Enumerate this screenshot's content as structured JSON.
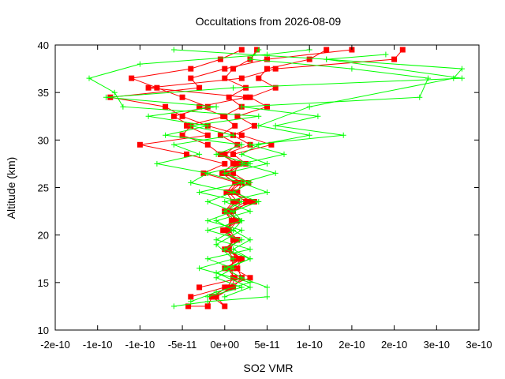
{
  "chart_data": {
    "type": "line",
    "title": "Occultations from 2026-08-09",
    "xlabel": "SO2 VMR",
    "ylabel": "Altitude (km)",
    "xlim": [
      -2e-10,
      3e-10
    ],
    "ylim": [
      10,
      40
    ],
    "xticks": [
      "-2e-10",
      "-1e-10",
      "-1e-10",
      "-5e-11",
      "0e+00",
      "5e-11",
      "1e-10",
      "2e-10",
      "2e-10",
      "3e-10",
      "3e-10"
    ],
    "yticks": [
      "10",
      "15",
      "20",
      "25",
      "30",
      "35",
      "40"
    ],
    "grid": false,
    "legend": "none",
    "series": [
      {
        "color": "#ff0000",
        "marker": "square",
        "values": [
          [
            -4.3e-11,
            12.5
          ],
          [
            -2e-11,
            12.5
          ],
          [
            -1.5e-11,
            13.5
          ],
          [
            0,
            12.5
          ],
          [
            -1e-11,
            13.5
          ],
          [
            8e-12,
            14.5
          ],
          [
            1.2e-11,
            15.5
          ],
          [
            3e-12,
            16.5
          ],
          [
            1.5e-11,
            17.5
          ],
          [
            5e-12,
            18.5
          ],
          [
            1.5e-11,
            19.5
          ],
          [
            0,
            20.5
          ],
          [
            1.2e-11,
            21.5
          ],
          [
            0,
            22.5
          ],
          [
            1e-11,
            23.5
          ],
          [
            2e-12,
            24.5
          ],
          [
            1.2e-11,
            25.5
          ],
          [
            -3e-12,
            26.5
          ],
          [
            1e-11,
            27.5
          ],
          [
            0,
            28.5
          ],
          [
            1.5e-11,
            29.5
          ],
          [
            -5e-12,
            30.5
          ],
          [
            1.2e-11,
            31.5
          ],
          [
            -2e-12,
            32.5
          ],
          [
            2e-11,
            33.5
          ],
          [
            5e-12,
            34.5
          ],
          [
            2.5e-11,
            35.5
          ],
          [
            0,
            36.5
          ],
          [
            1e-11,
            37.5
          ],
          [
            3e-11,
            38.5
          ],
          [
            3.8e-11,
            39.5
          ]
        ]
      },
      {
        "color": "#ff0000",
        "marker": "square",
        "values": [
          [
            -2e-11,
            12.5
          ],
          [
            -1.5e-11,
            13.5
          ],
          [
            3e-12,
            14.5
          ],
          [
            1e-11,
            15.5
          ],
          [
            8e-12,
            16.5
          ],
          [
            1e-11,
            17.5
          ],
          [
            3e-12,
            18.5
          ],
          [
            1e-11,
            19.5
          ],
          [
            -2e-12,
            20.5
          ],
          [
            8e-12,
            21.5
          ],
          [
            0,
            22.5
          ],
          [
            1.5e-11,
            23.5
          ],
          [
            5e-12,
            24.5
          ],
          [
            2e-11,
            25.5
          ],
          [
            3e-12,
            26.5
          ],
          [
            1.5e-11,
            27.5
          ],
          [
            -5e-12,
            28.5
          ],
          [
            -2e-11,
            29.5
          ],
          [
            -5e-11,
            30.5
          ],
          [
            -4e-11,
            31.5
          ],
          [
            -6e-11,
            32.5
          ],
          [
            -2e-11,
            33.5
          ],
          [
            -5e-11,
            34.5
          ],
          [
            -8e-11,
            35.5
          ],
          [
            -1.1e-10,
            36.5
          ],
          [
            -4e-11,
            37.5
          ],
          [
            -5e-12,
            38.5
          ],
          [
            2e-11,
            39.5
          ]
        ]
      },
      {
        "color": "#ff0000",
        "marker": "square",
        "values": [
          [
            -1e-11,
            13.5
          ],
          [
            1e-11,
            14.5
          ],
          [
            2e-11,
            15.5
          ],
          [
            1.5e-11,
            16.5
          ],
          [
            2e-11,
            17.5
          ],
          [
            5e-12,
            18.5
          ],
          [
            1.5e-11,
            19.5
          ],
          [
            5e-12,
            20.5
          ],
          [
            1.5e-11,
            21.5
          ],
          [
            5e-12,
            22.5
          ],
          [
            2.5e-11,
            23.5
          ],
          [
            1e-11,
            24.5
          ],
          [
            2.8e-11,
            25.5
          ],
          [
            1e-11,
            26.5
          ],
          [
            1.8e-11,
            27.5
          ],
          [
            0,
            28.5
          ],
          [
            3e-11,
            29.5
          ],
          [
            1e-11,
            30.5
          ],
          [
            3.5e-11,
            31.5
          ],
          [
            1.5e-11,
            32.5
          ],
          [
            5e-11,
            33.5
          ],
          [
            3e-11,
            34.5
          ],
          [
            6e-11,
            35.5
          ],
          [
            4e-11,
            36.5
          ],
          [
            5e-11,
            37.5
          ],
          [
            1e-10,
            38.5
          ],
          [
            1.2e-10,
            39.5
          ]
        ]
      },
      {
        "color": "#ff0000",
        "marker": "square",
        "values": [
          [
            -4e-11,
            13.5
          ],
          [
            0,
            14.5
          ],
          [
            3e-11,
            15.5
          ],
          [
            1e-11,
            16.5
          ],
          [
            2e-11,
            17.5
          ],
          [
            0,
            18.5
          ],
          [
            1.2e-11,
            19.5
          ],
          [
            0,
            20.5
          ],
          [
            1e-11,
            21.5
          ],
          [
            1e-11,
            22.5
          ],
          [
            3e-11,
            23.5
          ],
          [
            1.5e-11,
            24.5
          ],
          [
            2e-11,
            25.5
          ],
          [
            0,
            26.5
          ],
          [
            2.5e-11,
            27.5
          ],
          [
            1e-11,
            28.5
          ],
          [
            5.5e-11,
            29.5
          ],
          [
            2e-11,
            30.5
          ],
          [
            -2e-11,
            31.5
          ],
          [
            -5e-11,
            32.5
          ],
          [
            -7e-11,
            33.5
          ],
          [
            -1.35e-10,
            34.5
          ],
          [
            -3e-11,
            35.5
          ],
          [
            -4e-11,
            36.5
          ],
          [
            0,
            37.5
          ],
          [
            5e-11,
            38.5
          ],
          [
            1.5e-10,
            39.5
          ]
        ]
      },
      {
        "color": "#ff0000",
        "marker": "square",
        "values": [
          [
            -3e-11,
            14.5
          ],
          [
            2e-11,
            15.5
          ],
          [
            0,
            16.5
          ],
          [
            2e-11,
            17.5
          ],
          [
            3e-12,
            18.5
          ],
          [
            1.2e-11,
            19.5
          ],
          [
            0,
            20.5
          ],
          [
            1.5e-11,
            21.5
          ],
          [
            3e-12,
            22.5
          ],
          [
            3.5e-11,
            23.5
          ],
          [
            5e-12,
            24.5
          ],
          [
            1.5e-11,
            25.5
          ],
          [
            -2.5e-11,
            26.5
          ],
          [
            0,
            27.5
          ],
          [
            -4.5e-11,
            28.5
          ],
          [
            -1e-10,
            29.5
          ],
          [
            -2e-11,
            30.5
          ],
          [
            -4.5e-11,
            31.5
          ],
          [
            0,
            32.5
          ],
          [
            -3e-11,
            33.5
          ],
          [
            2.5e-11,
            34.5
          ],
          [
            -9e-11,
            35.5
          ],
          [
            2e-11,
            36.5
          ],
          [
            6e-11,
            37.5
          ],
          [
            2e-10,
            38.5
          ],
          [
            2.1e-10,
            39.5
          ]
        ]
      },
      {
        "color": "#00ff00",
        "marker": "plus",
        "values": [
          [
            -6e-11,
            12.5
          ],
          [
            -2e-11,
            13
          ],
          [
            5e-11,
            13.5
          ],
          [
            5e-11,
            14.5
          ],
          [
            2e-11,
            15.5
          ],
          [
            0,
            16.5
          ],
          [
            3e-11,
            17.5
          ],
          [
            1e-11,
            18.5
          ],
          [
            3e-11,
            19.5
          ],
          [
            1e-11,
            20.5
          ],
          [
            2e-11,
            21.5
          ],
          [
            1e-11,
            22.5
          ],
          [
            4e-11,
            23.5
          ],
          [
            1e-11,
            24.5
          ],
          [
            3e-11,
            25.5
          ],
          [
            0,
            26.5
          ],
          [
            5e-11,
            27.5
          ],
          [
            2e-11,
            28.5
          ],
          [
            4e-11,
            29.5
          ],
          [
            1e-10,
            30.5
          ],
          [
            4e-11,
            31.5
          ],
          [
            1e-10,
            33.5
          ],
          [
            2.7e-10,
            36.5
          ],
          [
            2.8e-10,
            37.5
          ],
          [
            1.2e-10,
            38.5
          ],
          [
            -6e-11,
            39.5
          ]
        ]
      },
      {
        "color": "#00ff00",
        "marker": "plus",
        "values": [
          [
            -4e-11,
            13
          ],
          [
            -1e-11,
            14
          ],
          [
            3e-11,
            15
          ],
          [
            -3e-11,
            16.5
          ],
          [
            1e-11,
            17.5
          ],
          [
            -1e-11,
            19
          ],
          [
            2e-11,
            20.5
          ],
          [
            -2e-11,
            21.5
          ],
          [
            1e-11,
            22.5
          ],
          [
            -2e-11,
            23.5
          ],
          [
            1e-11,
            24.5
          ],
          [
            -4e-11,
            25.5
          ],
          [
            -2e-11,
            26.5
          ],
          [
            -8e-11,
            27.5
          ],
          [
            -3e-11,
            28.5
          ],
          [
            -6e-11,
            29.5
          ],
          [
            1e-11,
            30.5
          ],
          [
            -4e-11,
            31.5
          ],
          [
            4e-11,
            32.5
          ],
          [
            -1.2e-10,
            33.5
          ],
          [
            -1.3e-10,
            35
          ],
          [
            -1.6e-10,
            36.5
          ],
          [
            -1e-10,
            38
          ],
          [
            5e-11,
            39
          ],
          [
            1e-10,
            39.5
          ]
        ]
      },
      {
        "color": "#00ff00",
        "marker": "plus",
        "values": [
          [
            -2e-11,
            13.5
          ],
          [
            2e-11,
            14.5
          ],
          [
            -1e-11,
            15.5
          ],
          [
            1e-11,
            16.5
          ],
          [
            -2e-11,
            17.5
          ],
          [
            3e-11,
            18.5
          ],
          [
            -1e-11,
            19.5
          ],
          [
            1e-11,
            20.5
          ],
          [
            -1e-11,
            21.5
          ],
          [
            3e-11,
            22.5
          ],
          [
            0,
            23.5
          ],
          [
            5e-11,
            24.5
          ],
          [
            2e-11,
            25.5
          ],
          [
            6e-11,
            26.5
          ],
          [
            2e-11,
            27.5
          ],
          [
            7e-11,
            28.5
          ],
          [
            3e-11,
            29.5
          ],
          [
            1.4e-10,
            30.5
          ],
          [
            6e-11,
            31.5
          ],
          [
            1.1e-10,
            32.5
          ],
          [
            2e-11,
            33.5
          ],
          [
            2.3e-10,
            34.5
          ],
          [
            2.4e-10,
            36.5
          ],
          [
            1.5e-10,
            37.5
          ],
          [
            3e-11,
            38.5
          ],
          [
            4e-11,
            39.5
          ]
        ]
      },
      {
        "color": "#00ff00",
        "marker": "plus",
        "values": [
          [
            0,
            13.5
          ],
          [
            3e-11,
            14.5
          ],
          [
            -1e-11,
            16
          ],
          [
            3e-11,
            17.5
          ],
          [
            0,
            18.5
          ],
          [
            2e-11,
            19.5
          ],
          [
            -2e-11,
            20.5
          ],
          [
            2e-11,
            21.5
          ],
          [
            0,
            22.5
          ],
          [
            2e-11,
            23.5
          ],
          [
            -3e-11,
            24.5
          ],
          [
            2e-11,
            25.5
          ],
          [
            -2e-11,
            26.5
          ],
          [
            3e-11,
            27.5
          ],
          [
            -1e-11,
            28.5
          ],
          [
            2e-11,
            29.5
          ],
          [
            -7e-11,
            30.5
          ],
          [
            -2e-11,
            31.5
          ],
          [
            -9e-11,
            32.5
          ],
          [
            -1e-11,
            33.5
          ],
          [
            -1.4e-10,
            34.5
          ],
          [
            1e-11,
            35.5
          ],
          [
            2.8e-10,
            36.5
          ],
          [
            1.2e-10,
            38.5
          ],
          [
            1.9e-10,
            39
          ]
        ]
      }
    ]
  }
}
